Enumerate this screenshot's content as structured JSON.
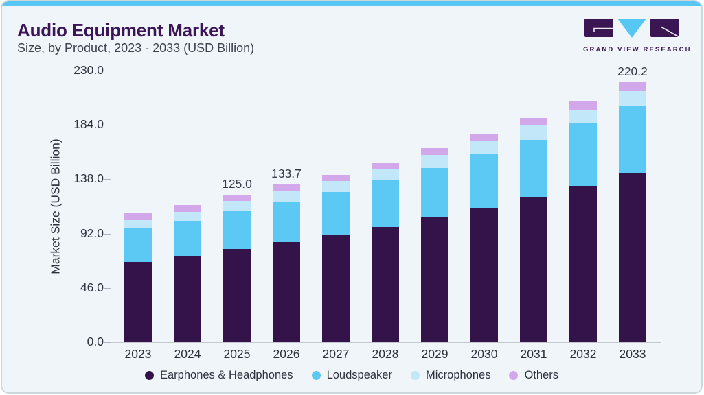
{
  "header": {
    "title": "Audio Equipment Market",
    "subtitle": "Size, by Product, 2023 - 2033 (USD Billion)",
    "logo_text": "GRAND VIEW RESEARCH"
  },
  "theme": {
    "accent_blue": "#57c6f3",
    "card_background": "#f0f5f9",
    "title_purple": "#3b1556",
    "text_gray": "#3d414c",
    "axis_gray": "#b3bdc5"
  },
  "chart_data": {
    "type": "bar",
    "stacked": true,
    "title": "Audio Equipment Market",
    "subtitle": "Size, by Product, 2023 - 2033 (USD Billion)",
    "xlabel": "",
    "ylabel": "Market Size (USD Billion)",
    "ylim": [
      0,
      230
    ],
    "yticks": [
      0.0,
      46.0,
      92.0,
      138.0,
      184.0,
      230.0
    ],
    "grid": false,
    "legend_position": "bottom",
    "categories": [
      "2023",
      "2024",
      "2025",
      "2026",
      "2027",
      "2028",
      "2029",
      "2030",
      "2031",
      "2032",
      "2033"
    ],
    "series": [
      {
        "name": "Earphones & Headphones",
        "color": "#331349",
        "values": [
          68,
          73,
          79,
          84.5,
          90.5,
          97.5,
          105.5,
          114,
          123,
          132.5,
          143.5
        ]
      },
      {
        "name": "Loudspeaker",
        "color": "#5bc9f4",
        "values": [
          28.5,
          30,
          32.5,
          34,
          36.5,
          39.5,
          42,
          45,
          48.5,
          52.5,
          56.5
        ]
      },
      {
        "name": "Microphones",
        "color": "#c1e7f8",
        "values": [
          7,
          7.5,
          8,
          9,
          9.5,
          9.5,
          11,
          11,
          12,
          12,
          13
        ]
      },
      {
        "name": "Others",
        "color": "#d3a8ea",
        "values": [
          5.5,
          5.5,
          5.5,
          6.2,
          5.5,
          5.5,
          6,
          6.5,
          6.5,
          7.5,
          7.2
        ]
      }
    ],
    "total_labels": {
      "2025": "125.0",
      "2026": "133.7",
      "2033": "220.2"
    }
  }
}
